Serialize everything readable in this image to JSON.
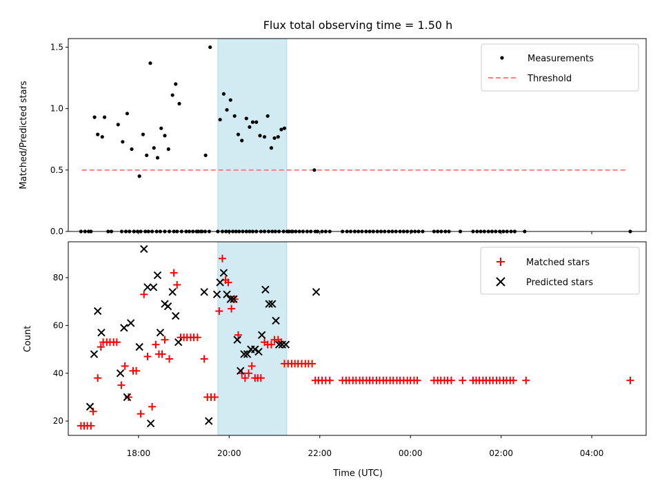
{
  "chart_data": [
    {
      "type": "scatter",
      "title": "Flux total observing time = 1.50 h",
      "xlabel": "",
      "ylabel": "Matched/Predicted stars",
      "xlim": [
        16.45,
        29.2
      ],
      "ylim": [
        0,
        1.57
      ],
      "yticks": [
        0.0,
        0.5,
        1.0,
        1.5
      ],
      "yticklabels": [
        "0.0",
        "0.5",
        "1.0",
        "1.5"
      ],
      "shaded_span": [
        19.75,
        21.27
      ],
      "legend": {
        "placement": "top-right",
        "entries": [
          "Measurements",
          "Threshold"
        ]
      },
      "colors": {
        "measurements": "#000000",
        "threshold": "#ff7f7f",
        "span": "#add8e6"
      },
      "threshold": {
        "name": "Threshold",
        "y": 0.5,
        "x": [
          16.75,
          28.75
        ]
      },
      "series": [
        {
          "name": "Measurements",
          "x": [
            16.73,
            16.82,
            16.9,
            16.95,
            17.03,
            17.1,
            17.2,
            17.25,
            17.33,
            17.4,
            17.63,
            17.72,
            17.8,
            17.9,
            18.05,
            18.15,
            18.22,
            18.3,
            18.4,
            18.48,
            18.58,
            18.68,
            18.78,
            18.85,
            18.95,
            19.05,
            19.12,
            19.2,
            19.28,
            19.38,
            19.47,
            19.75,
            19.85,
            19.93,
            20.0,
            20.08,
            20.15,
            20.22,
            20.3,
            20.38,
            20.45,
            20.52,
            20.6,
            20.7,
            20.78,
            20.87,
            20.95,
            21.02,
            21.1,
            21.2,
            21.28,
            21.38,
            21.47,
            21.55,
            21.63,
            21.72,
            21.8,
            21.9,
            22.05,
            22.13,
            22.22,
            22.5,
            22.6,
            22.68,
            22.77,
            22.85,
            22.93,
            23.02,
            23.1,
            23.18,
            23.27,
            23.35,
            23.43,
            23.52,
            23.6,
            23.68,
            23.77,
            23.85,
            23.93,
            24.02,
            24.1,
            24.18,
            24.27,
            24.52,
            24.6,
            24.68,
            24.77,
            24.85,
            25.1,
            25.38,
            25.47,
            25.55,
            25.63,
            25.72,
            25.8,
            25.88,
            25.97,
            26.05,
            26.13,
            26.22,
            26.3,
            26.52,
            28.85
          ],
          "y": [
            0,
            0,
            0,
            0,
            0.93,
            0.79,
            0.77,
            0.93,
            0,
            0,
            0,
            0,
            0,
            0,
            0,
            0,
            0,
            0,
            0,
            0,
            0,
            0,
            0,
            0,
            0,
            0,
            0,
            0,
            0,
            0,
            0,
            0,
            0,
            0,
            0,
            0,
            0,
            0,
            0,
            0,
            0,
            0,
            0,
            0,
            0,
            0,
            0,
            0,
            0,
            0,
            0,
            0,
            0,
            0,
            0,
            0,
            0,
            0,
            0,
            0,
            0,
            0,
            0,
            0,
            0,
            0,
            0,
            0,
            0,
            0,
            0,
            0,
            0,
            0,
            0,
            0,
            0,
            0,
            0,
            0,
            0,
            0,
            0,
            0,
            0,
            0,
            0,
            0,
            0,
            0,
            0,
            0,
            0,
            0,
            0,
            0,
            0,
            0,
            0,
            0,
            0,
            0,
            0
          ]
        },
        {
          "name": "Measurements",
          "x": [
            17.55,
            17.65,
            17.75,
            17.85,
            18.02,
            18.1,
            18.18,
            18.26,
            18.34,
            18.42,
            18.5,
            18.58,
            18.66,
            18.75,
            18.82,
            18.9,
            19.48,
            19.58,
            19.8,
            19.88,
            19.95,
            20.03,
            20.12,
            20.2,
            20.28,
            20.38,
            20.45,
            20.52,
            20.6,
            20.68,
            20.78,
            20.85,
            20.93,
            21.0,
            21.08,
            21.15,
            21.22,
            21.88
          ],
          "y": [
            0.87,
            0.73,
            0.96,
            0.67,
            0.45,
            0.79,
            0.62,
            1.37,
            0.68,
            0.6,
            0.84,
            0.78,
            0.67,
            1.11,
            1.2,
            1.04,
            0.62,
            1.5,
            0.91,
            1.12,
            0.99,
            1.07,
            0.94,
            0.79,
            0.74,
            0.92,
            0.85,
            0.89,
            0.89,
            0.78,
            0.77,
            0.94,
            0.68,
            0.76,
            0.77,
            0.83,
            0.84,
            0.5
          ]
        },
        {
          "name": "Measurements",
          "x": [
            17.9,
            17.98,
            19.32,
            19.4,
            19.56,
            21.32,
            21.4,
            21.95
          ],
          "y": [
            0,
            0,
            0,
            0,
            0,
            0,
            0,
            0
          ]
        }
      ]
    },
    {
      "type": "scatter",
      "title": "",
      "xlabel": "Time (UTC)",
      "ylabel": "Count",
      "xlim": [
        16.45,
        29.2
      ],
      "ylim": [
        14,
        95
      ],
      "yticks": [
        20,
        40,
        60,
        80
      ],
      "yticklabels": [
        "20",
        "40",
        "60",
        "80"
      ],
      "xticks": [
        18,
        20,
        22,
        24,
        26,
        28
      ],
      "xticklabels": [
        "18:00",
        "20:00",
        "22:00",
        "00:00",
        "02:00",
        "04:00"
      ],
      "shaded_span": [
        19.75,
        21.27
      ],
      "legend": {
        "placement": "top-right",
        "entries": [
          "Matched stars",
          "Predicted stars"
        ]
      },
      "colors": {
        "matched": "#ff0000",
        "predicted": "#000000",
        "span": "#add8e6"
      },
      "series": [
        {
          "name": "Matched stars",
          "x": [
            16.73,
            16.8,
            16.87,
            16.95,
            17.0,
            17.1,
            17.17,
            17.22,
            17.3,
            17.37,
            17.45,
            17.52,
            17.62,
            17.7,
            17.78,
            17.88,
            17.95,
            18.05,
            18.12,
            18.2,
            18.3,
            18.38,
            18.45,
            18.52,
            18.58,
            18.68,
            18.78,
            18.85,
            18.93,
            19.0,
            19.07,
            19.15,
            19.22,
            19.3,
            19.45,
            19.52,
            19.6,
            19.68,
            19.78,
            19.85,
            19.92,
            19.98,
            20.05,
            20.12,
            20.2,
            20.28,
            20.35,
            20.43,
            20.5,
            20.57,
            20.63,
            20.7,
            20.78,
            20.85,
            20.93,
            21.0,
            21.08,
            21.15,
            21.22,
            21.3,
            21.38,
            21.45,
            21.52,
            21.6,
            21.68,
            21.75,
            21.83,
            21.9,
            21.97,
            22.05,
            22.13,
            22.22,
            22.5,
            22.58,
            22.65,
            22.73,
            22.8,
            22.88,
            22.95,
            23.03,
            23.1,
            23.17,
            23.25,
            23.32,
            23.4,
            23.47,
            23.55,
            23.62,
            23.7,
            23.77,
            23.85,
            23.93,
            24.0,
            24.08,
            24.15,
            24.52,
            24.6,
            24.67,
            24.75,
            24.82,
            24.9,
            25.15,
            25.38,
            25.45,
            25.52,
            25.6,
            25.67,
            25.75,
            25.82,
            25.9,
            25.97,
            26.05,
            26.12,
            26.2,
            26.27,
            26.55,
            28.85
          ],
          "y": [
            18,
            18,
            18,
            18,
            24,
            38,
            51,
            53,
            53,
            53,
            53,
            53,
            35,
            43,
            30,
            41,
            41,
            23,
            73,
            47,
            26,
            52,
            48,
            48,
            54,
            46,
            82,
            77,
            55,
            55,
            55,
            55,
            55,
            55,
            46,
            30,
            30,
            30,
            66,
            88,
            79,
            78,
            67,
            71,
            56,
            40,
            38,
            40,
            43,
            38,
            38,
            38,
            53,
            52,
            52,
            54,
            54,
            53,
            44,
            44,
            44,
            44,
            44,
            44,
            44,
            44,
            44,
            37,
            37,
            37,
            37,
            37,
            37,
            37,
            37,
            37,
            37,
            37,
            37,
            37,
            37,
            37,
            37,
            37,
            37,
            37,
            37,
            37,
            37,
            37,
            37,
            37,
            37,
            37,
            37,
            37,
            37,
            37,
            37,
            37,
            37,
            37,
            37,
            37,
            37,
            37,
            37,
            37,
            37,
            37,
            37,
            37,
            37,
            37,
            37,
            37,
            37
          ]
        },
        {
          "name": "Predicted stars",
          "x": [
            16.93,
            17.02,
            17.1,
            17.18,
            17.6,
            17.68,
            17.75,
            17.83,
            18.02,
            18.12,
            18.2,
            18.27,
            18.33,
            18.42,
            18.48,
            18.58,
            18.65,
            18.75,
            18.82,
            18.88,
            19.45,
            19.55,
            19.73,
            19.8,
            19.88,
            19.95,
            20.03,
            20.1,
            20.18,
            20.25,
            20.33,
            20.4,
            20.48,
            20.57,
            20.65,
            20.72,
            20.8,
            20.88,
            20.95,
            21.03,
            21.1,
            21.17,
            21.25,
            21.92
          ],
          "y": [
            26,
            48,
            66,
            57,
            40,
            59,
            30,
            61,
            51,
            92,
            76,
            19,
            76,
            81,
            57,
            69,
            68,
            74,
            64,
            53,
            74,
            20,
            73,
            78,
            82,
            73,
            71,
            71,
            54,
            41,
            48,
            48,
            50,
            50,
            49,
            56,
            75,
            69,
            69,
            62,
            52,
            52,
            52,
            74
          ]
        }
      ]
    }
  ]
}
